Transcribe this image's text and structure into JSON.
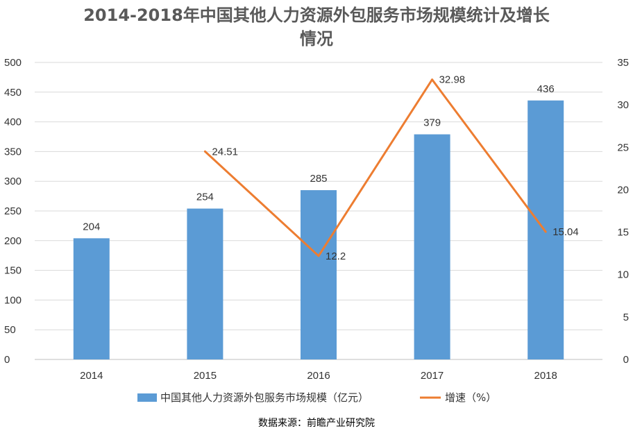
{
  "chart_data": {
    "type": "bar",
    "title_line1": "2014-2018年中国其他人力资源外包服务市场规模统计及增长",
    "title_line2": "情况",
    "categories": [
      "2014",
      "2015",
      "2016",
      "2017",
      "2018"
    ],
    "series": [
      {
        "name": "中国其他人力资源外包服务市场规模（亿元）",
        "type": "bar",
        "axis": "left",
        "values": [
          204,
          254,
          285,
          379,
          436
        ],
        "color": "#5B9BD5"
      },
      {
        "name": "增速（%）",
        "type": "line",
        "axis": "right",
        "values": [
          null,
          24.51,
          12.2,
          32.98,
          15.04
        ],
        "color": "#ED7D31"
      }
    ],
    "bar_labels": [
      "204",
      "254",
      "285",
      "379",
      "436"
    ],
    "line_labels": [
      "",
      "24.51",
      "12.2",
      "32.98",
      "15.04"
    ],
    "y_left": {
      "range": [
        0,
        500
      ],
      "ticks": [
        "0",
        "50",
        "100",
        "150",
        "200",
        "250",
        "300",
        "350",
        "400",
        "450",
        "500"
      ]
    },
    "y_right": {
      "range": [
        0,
        35
      ],
      "ticks": [
        "0",
        "5",
        "10",
        "15",
        "20",
        "25",
        "30",
        "35"
      ]
    },
    "grid": true,
    "legend_position": "bottom",
    "source": "数据来源：前瞻产业研究院"
  }
}
